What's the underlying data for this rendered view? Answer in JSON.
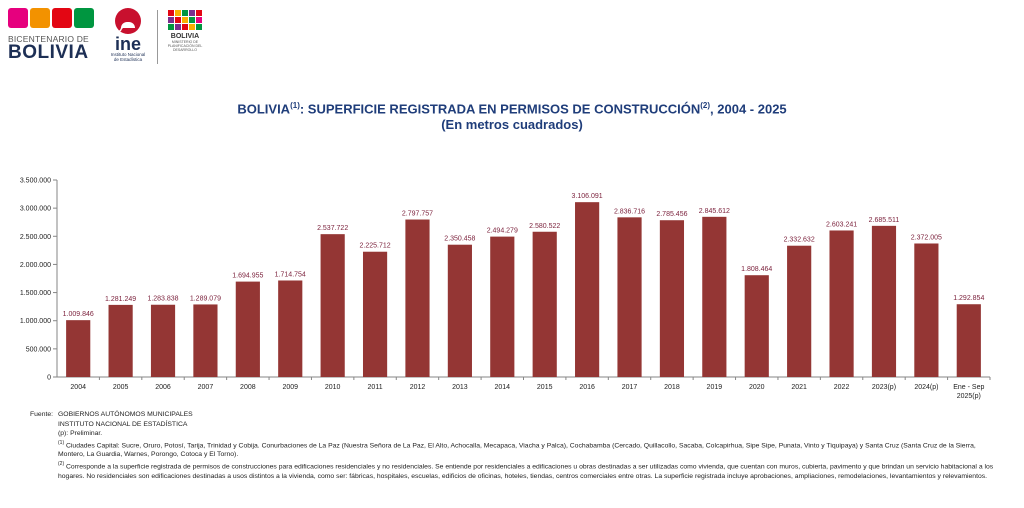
{
  "logos": {
    "bicentenario_top": "BICENTENARIO DE",
    "bicentenario_main": "BOLIVIA",
    "ine_word": "ine",
    "ine_sub_1": "Instituto Nacional",
    "ine_sub_2": "de Estadística",
    "ministry_main": "BOLIVIA",
    "ministry_sub": "MINISTERIO DE PLANIFICACIÓN DEL DESARROLLO"
  },
  "title": {
    "line1_a": "BOLIVIA",
    "sup1": "(1)",
    "line1_b": ": SUPERFICIE REGISTRADA EN PERMISOS DE CONSTRUCCIÓN",
    "sup2": "(2)",
    "line1_c": ", 2004 - 2025",
    "line2": "(En metros cuadrados)"
  },
  "chart_data": {
    "type": "bar",
    "categories": [
      "2004",
      "2005",
      "2006",
      "2007",
      "2008",
      "2009",
      "2010",
      "2011",
      "2012",
      "2013",
      "2014",
      "2015",
      "2016",
      "2017",
      "2018",
      "2019",
      "2020",
      "2021",
      "2022",
      "2023(p)",
      "2024(p)",
      "Ene - Sep 2025(p)"
    ],
    "values": [
      1009846,
      1281249,
      1283838,
      1289079,
      1694955,
      1714754,
      2537722,
      2225712,
      2797757,
      2350458,
      2494279,
      2580522,
      3106091,
      2836716,
      2785456,
      2845612,
      1808464,
      2332632,
      2603241,
      2685511,
      2372005,
      1292854
    ],
    "data_labels": [
      "1.009.846",
      "1.281.249",
      "1.283.838",
      "1.289.079",
      "1.694.955",
      "1.714.754",
      "2.537.722",
      "2.225.712",
      "2.797.757",
      "2.350.458",
      "2.494.279",
      "2.580.522",
      "3.106.091",
      "2.836.716",
      "2.785.456",
      "2.845.612",
      "1.808.464",
      "2.332.632",
      "2.603.241",
      "2.685.511",
      "2.372.005",
      "1.292.854"
    ],
    "yticks": [
      0,
      500000,
      1000000,
      1500000,
      2000000,
      2500000,
      3000000,
      3500000
    ],
    "ytick_labels": [
      "0",
      "500.000",
      "1.000.000",
      "1.500.000",
      "2.000.000",
      "2.500.000",
      "3.000.000",
      "3.500.000"
    ],
    "ylim": [
      0,
      3500000
    ],
    "grid": false,
    "bar_color": "#943634",
    "label_color": "#7a1f3a"
  },
  "notes": {
    "fuente_label": "Fuente:",
    "fuente_1": "GOBIERNOS AUTÓNOMOS MUNICIPALES",
    "fuente_2": "INSTITUTO NACIONAL DE ESTADÍSTICA",
    "note_p": "(p): Preliminar.",
    "note1_sup": "(1)",
    "note1": " Ciudades Capital: Sucre, Oruro, Potosí, Tarija, Trinidad y Cobija. Conurbaciones de La Paz (Nuestra Señora de La Paz, El Alto, Achocalla, Mecapaca, Viacha y Palca), Cochabamba (Cercado, Quillacollo, Sacaba, Colcapirhua, Sipe Sipe, Punata, Vinto y Tiquipaya) y Santa Cruz (Santa Cruz de la Sierra, Montero, La Guardia, Warnes, Porongo, Cotoca y El Torno).",
    "note2_sup": "(2)",
    "note2": " Corresponde a la superficie registrada de permisos de construcciones para edificaciones residenciales y no residenciales. Se entiende por residenciales a  edificaciones u obras destinadas a ser utilizadas como vivienda, que cuentan con muros, cubierta, pavimento y que brindan un servicio habitacional a los hogares. No residenciales son edificaciones destinadas a usos distintos a la vivienda, como ser: fábricas, hospitales, escuelas, edificios de oficinas, hoteles, tiendas, centros comerciales entre otras. La superficie registrada incluye aprobaciones, ampliaciones, remodelaciones, levantamientos y relevamientos."
  }
}
